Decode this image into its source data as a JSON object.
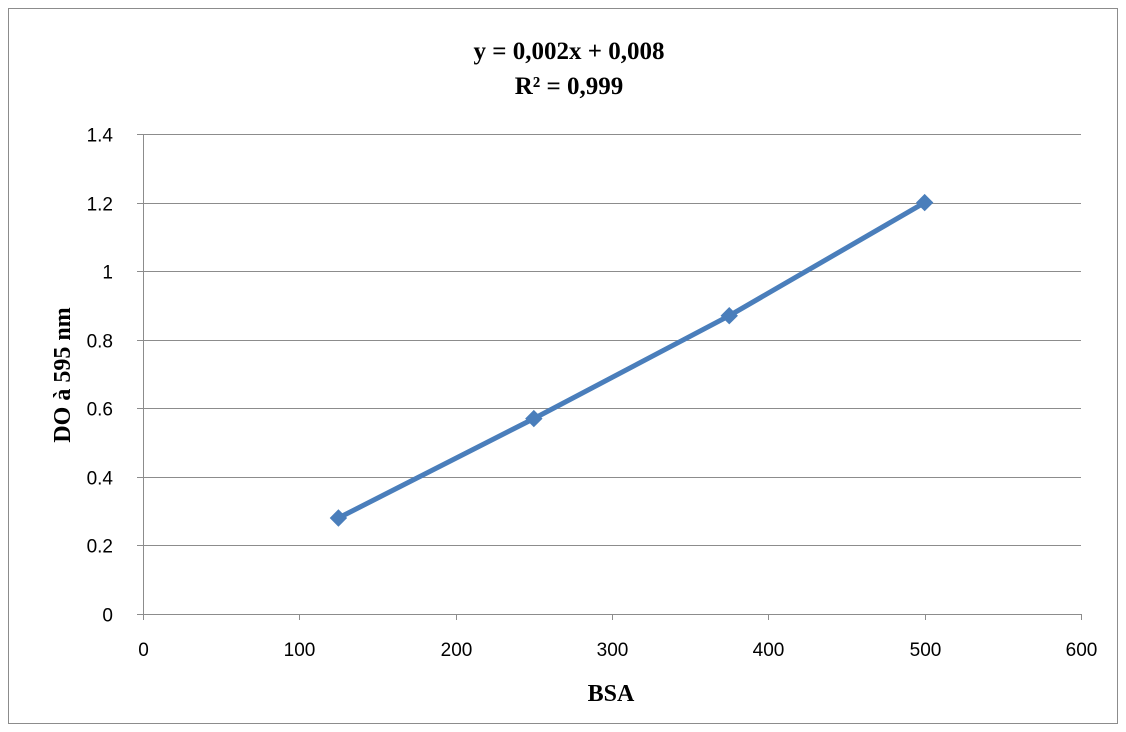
{
  "chart_data": {
    "type": "line",
    "title": "y = 0,002x + 0,008",
    "subtitle": "R² = 0,999",
    "xlabel": "BSA",
    "ylabel": "DO à 595 nm",
    "xlim": [
      0,
      600
    ],
    "ylim": [
      0,
      1.4
    ],
    "x_ticks": [
      0,
      100,
      200,
      300,
      400,
      500,
      600
    ],
    "y_ticks": [
      0,
      0.2,
      0.4,
      0.6,
      0.8,
      1,
      1.2,
      1.4
    ],
    "x_tick_labels": [
      "0",
      "100",
      "200",
      "300",
      "400",
      "500",
      "600"
    ],
    "y_tick_labels": [
      "0",
      "0.2",
      "0.4",
      "0.6",
      "0.8",
      "1",
      "1.2",
      "1.4"
    ],
    "grid": "horizontal",
    "legend": "none",
    "marker": "diamond",
    "series": [
      {
        "color": "#4a7ebb",
        "points": [
          {
            "x": 125,
            "y": 0.28
          },
          {
            "x": 250,
            "y": 0.57
          },
          {
            "x": 375,
            "y": 0.87
          },
          {
            "x": 500,
            "y": 1.2
          }
        ]
      }
    ]
  }
}
